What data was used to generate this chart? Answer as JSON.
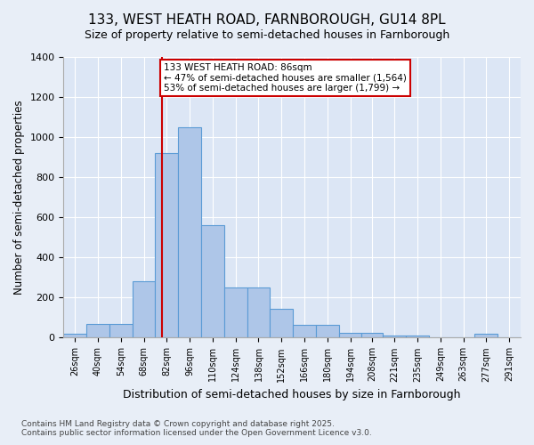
{
  "title_line1": "133, WEST HEATH ROAD, FARNBOROUGH, GU14 8PL",
  "title_line2": "Size of property relative to semi-detached houses in Farnborough",
  "xlabel": "Distribution of semi-detached houses by size in Farnborough",
  "ylabel": "Number of semi-detached properties",
  "annotation_title": "133 WEST HEATH ROAD: 86sqm",
  "annotation_line2": "← 47% of semi-detached houses are smaller (1,564)",
  "annotation_line3": "53% of semi-detached houses are larger (1,799) →",
  "footer_line1": "Contains HM Land Registry data © Crown copyright and database right 2025.",
  "footer_line2": "Contains public sector information licensed under the Open Government Licence v3.0.",
  "property_size": 86,
  "bar_edges": [
    26,
    40,
    54,
    68,
    82,
    96,
    110,
    124,
    138,
    152,
    166,
    180,
    194,
    208,
    221,
    235,
    249,
    263,
    277,
    291,
    305
  ],
  "bar_heights": [
    20,
    70,
    70,
    280,
    920,
    1050,
    560,
    250,
    250,
    145,
    65,
    65,
    25,
    25,
    10,
    10,
    0,
    0,
    18,
    0
  ],
  "bar_color": "#aec6e8",
  "bar_edgecolor": "#5b9bd5",
  "line_color": "#cc0000",
  "background_color": "#e8eef7",
  "plot_bg_color": "#dce6f5",
  "annotation_box_edgecolor": "#cc0000",
  "ylim": [
    0,
    1400
  ],
  "yticks": [
    0,
    200,
    400,
    600,
    800,
    1000,
    1200,
    1400
  ]
}
